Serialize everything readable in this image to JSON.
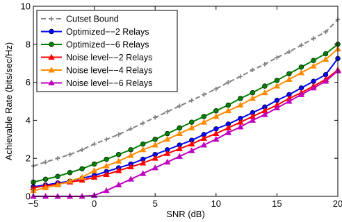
{
  "chart_data": {
    "type": "line",
    "xlabel": "SNR (dB)",
    "ylabel": "Achievable Rate (bits/sec/Hz)",
    "xlim": [
      -5,
      20
    ],
    "ylim": [
      0,
      10
    ],
    "xticks": [
      "−5",
      "0",
      "5",
      "10",
      "15",
      "20"
    ],
    "yticks": [
      "0",
      "2",
      "4",
      "6",
      "8",
      "10"
    ],
    "x": [
      -5,
      -4,
      -3,
      -2,
      -1,
      0,
      1,
      2,
      3,
      4,
      5,
      6,
      7,
      8,
      9,
      10,
      11,
      12,
      13,
      14,
      15,
      16,
      17,
      18,
      19,
      20
    ],
    "legend_position": "top-left",
    "grid": false,
    "series": [
      {
        "name": "Cutset Bound",
        "color": "#808080",
        "dash": "dashed",
        "marker": "plus",
        "values": [
          1.6,
          1.8,
          2.0,
          2.2,
          2.45,
          2.75,
          3.0,
          3.25,
          3.55,
          3.85,
          4.15,
          4.45,
          4.75,
          5.05,
          5.35,
          5.65,
          6.0,
          6.3,
          6.65,
          6.95,
          7.3,
          7.6,
          7.95,
          8.3,
          8.65,
          9.3
        ]
      },
      {
        "name": "Optimized−−2 Relays",
        "color": "#0000ff",
        "dash": "solid",
        "marker": "circle",
        "values": [
          0.5,
          0.6,
          0.7,
          0.8,
          0.95,
          1.1,
          1.3,
          1.5,
          1.7,
          1.95,
          2.2,
          2.45,
          2.7,
          2.95,
          3.25,
          3.55,
          3.8,
          4.1,
          4.4,
          4.7,
          5.05,
          5.35,
          5.7,
          6.05,
          6.4,
          7.25
        ]
      },
      {
        "name": "Optimized−−6 Relays",
        "color": "#008000",
        "dash": "solid",
        "marker": "circle",
        "values": [
          0.75,
          0.9,
          1.05,
          1.25,
          1.45,
          1.7,
          1.95,
          2.2,
          2.45,
          2.75,
          3.0,
          3.3,
          3.6,
          3.9,
          4.2,
          4.5,
          4.8,
          5.15,
          5.45,
          5.8,
          6.1,
          6.45,
          6.8,
          7.15,
          7.5,
          8.0
        ]
      },
      {
        "name": "Noise level−−2 Relays",
        "color": "#ff0000",
        "dash": "solid",
        "marker": "triangle",
        "values": [
          0.45,
          0.55,
          0.65,
          0.75,
          0.85,
          1.0,
          1.15,
          1.35,
          1.55,
          1.75,
          2.0,
          2.25,
          2.5,
          2.75,
          3.05,
          3.3,
          3.6,
          3.9,
          4.2,
          4.5,
          4.8,
          5.15,
          5.45,
          5.8,
          6.15,
          6.65
        ]
      },
      {
        "name": "Noise level−−4 Relays",
        "color": "#ff8c00",
        "dash": "solid",
        "marker": "triangle",
        "values": [
          0.3,
          0.45,
          0.6,
          0.8,
          1.0,
          1.35,
          1.6,
          1.85,
          2.15,
          2.45,
          2.7,
          3.0,
          3.3,
          3.6,
          3.9,
          4.2,
          4.5,
          4.8,
          5.15,
          5.45,
          5.8,
          6.15,
          6.5,
          6.85,
          7.2,
          7.75
        ]
      },
      {
        "name": "Noise level−−6 Relays",
        "color": "#bf00bf",
        "dash": "solid",
        "marker": "triangle",
        "values": [
          0.0,
          0.0,
          0.0,
          0.0,
          0.0,
          0.05,
          0.3,
          0.6,
          0.9,
          1.2,
          1.5,
          1.8,
          2.1,
          2.4,
          2.7,
          3.0,
          3.35,
          3.65,
          4.0,
          4.3,
          4.65,
          5.0,
          5.35,
          5.7,
          6.05,
          6.6
        ]
      }
    ]
  }
}
